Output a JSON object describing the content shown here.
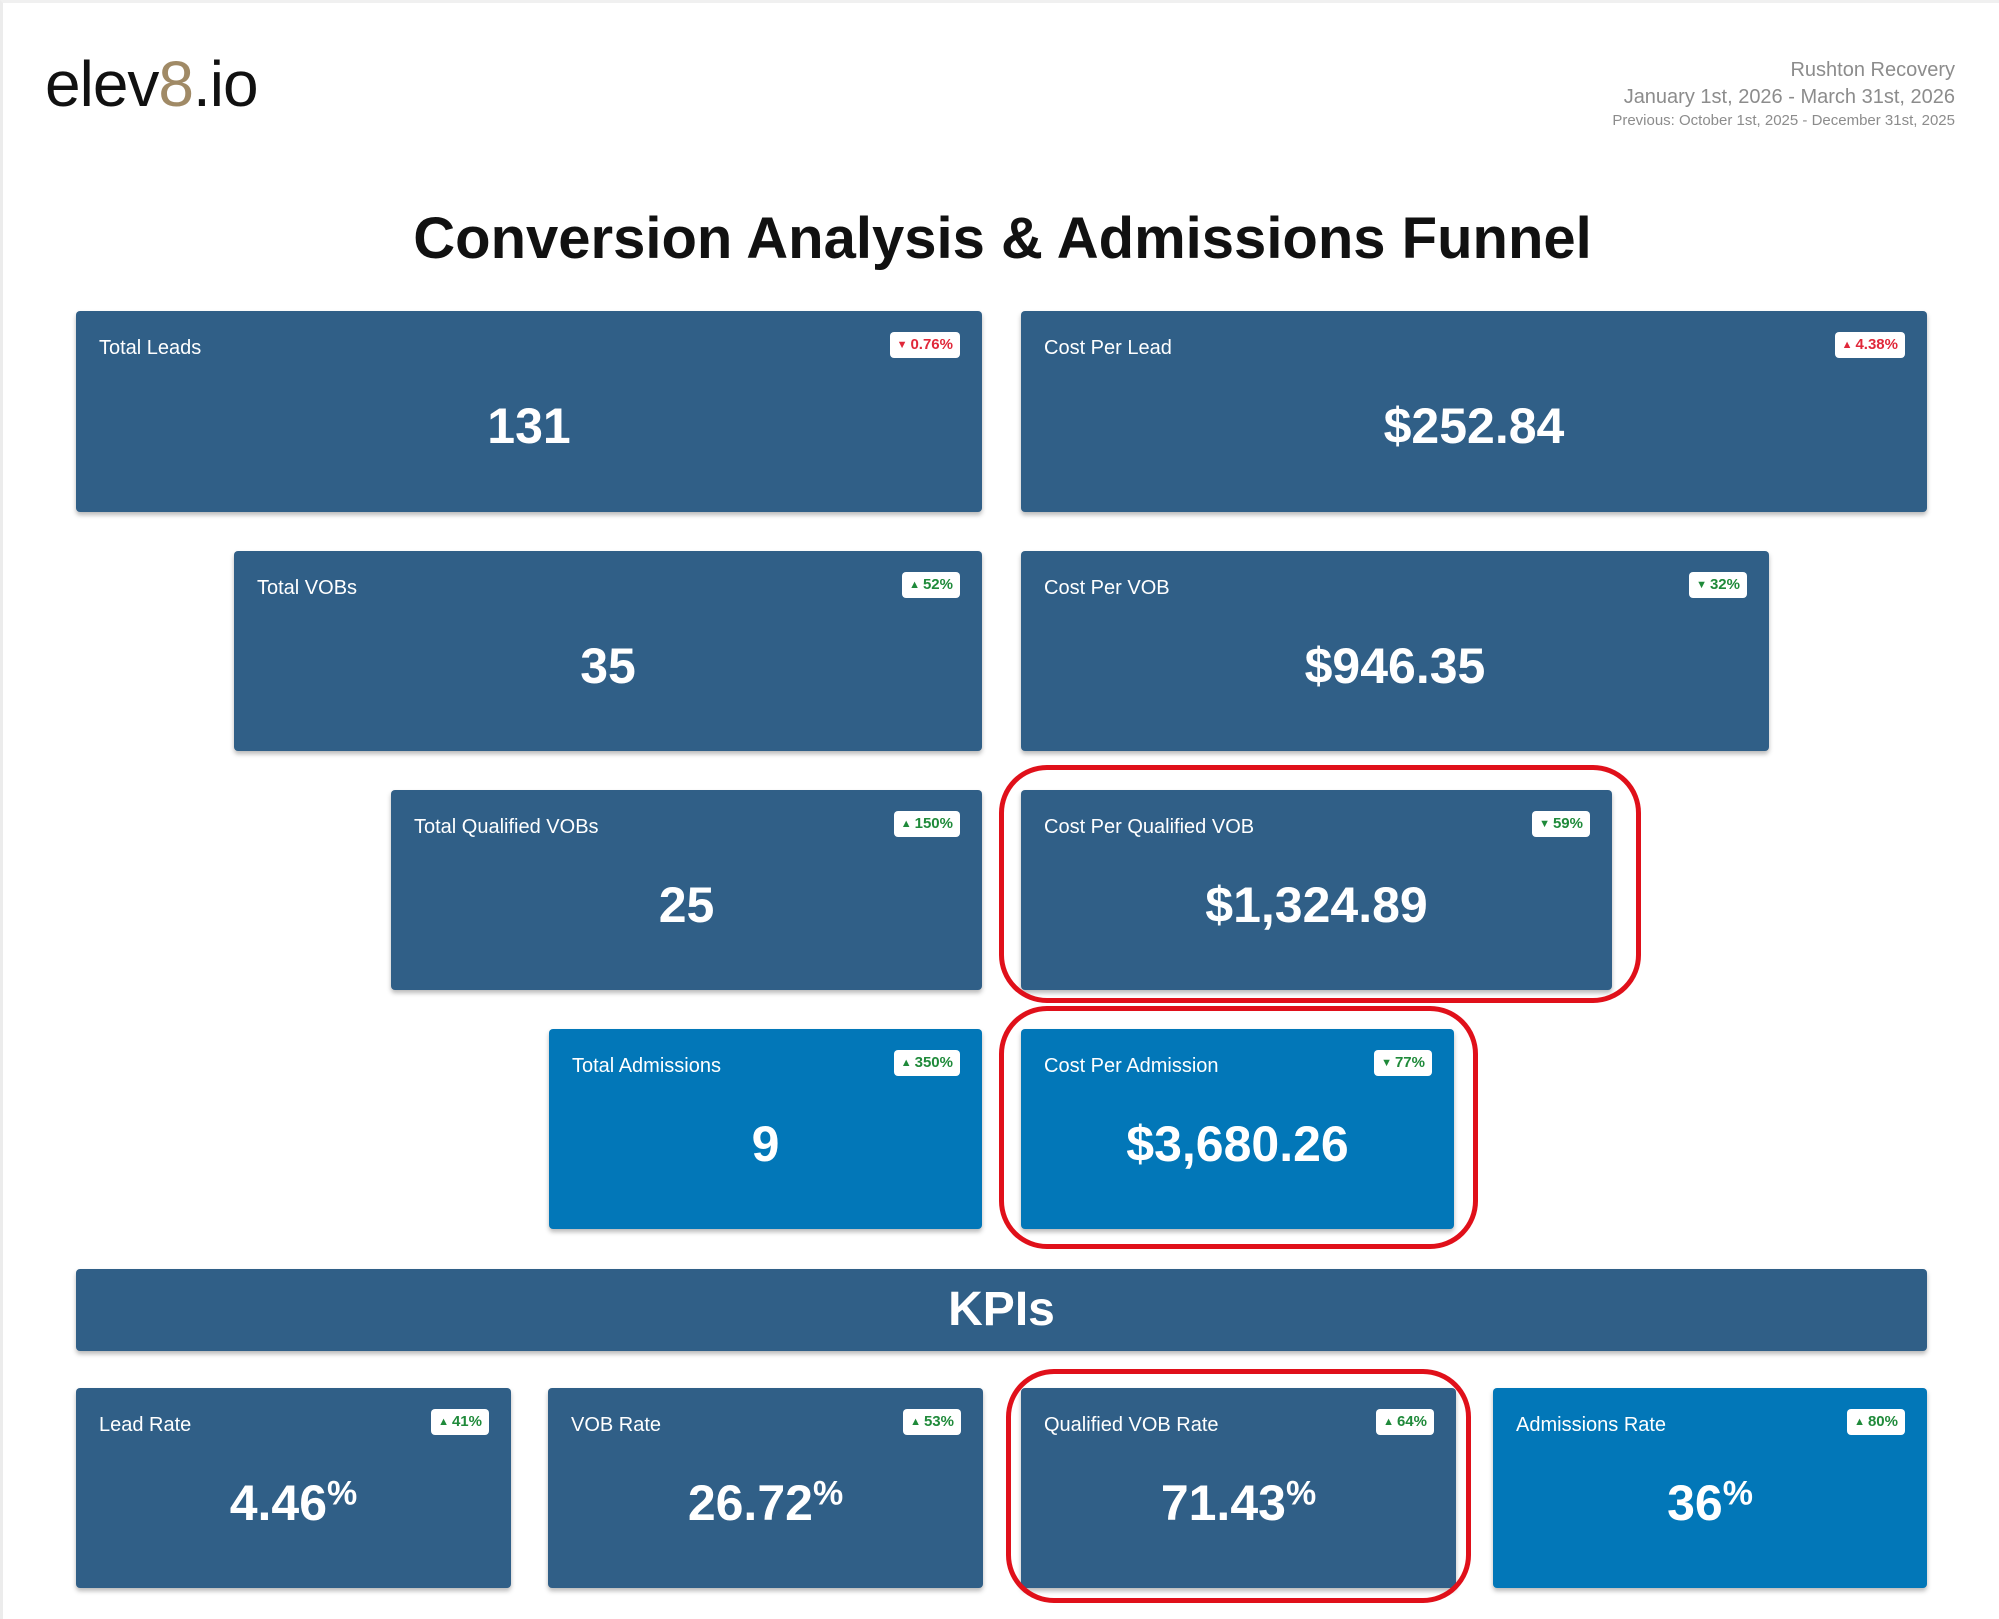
{
  "header": {
    "logo_prefix": "elev",
    "logo_eight": "8",
    "logo_suffix": ".io",
    "client": "Rushton Recovery",
    "date_range": "January 1st, 2026 - March 31st, 2026",
    "previous_range": "Previous: October 1st, 2025 - December 31st, 2025"
  },
  "title": "Conversion Analysis & Admissions Funnel",
  "funnel": {
    "total_leads": {
      "label": "Total Leads",
      "value": "131",
      "change": "0.76%",
      "direction": "down",
      "sentiment": "bad"
    },
    "cost_per_lead": {
      "label": "Cost Per Lead",
      "value": "$252.84",
      "change": "4.38%",
      "direction": "up",
      "sentiment": "bad"
    },
    "total_vobs": {
      "label": "Total VOBs",
      "value": "35",
      "change": "52%",
      "direction": "up",
      "sentiment": "good"
    },
    "cost_per_vob": {
      "label": "Cost Per VOB",
      "value": "$946.35",
      "change": "32%",
      "direction": "down",
      "sentiment": "good"
    },
    "total_qualified_vobs": {
      "label": "Total Qualified VOBs",
      "value": "25",
      "change": "150%",
      "direction": "up",
      "sentiment": "good"
    },
    "cost_per_qualified_vob": {
      "label": "Cost Per Qualified VOB",
      "value": "$1,324.89",
      "change": "59%",
      "direction": "down",
      "sentiment": "good"
    },
    "total_admissions": {
      "label": "Total Admissions",
      "value": "9",
      "change": "350%",
      "direction": "up",
      "sentiment": "good"
    },
    "cost_per_admission": {
      "label": "Cost Per Admission",
      "value": "$3,680.26",
      "change": "77%",
      "direction": "down",
      "sentiment": "good"
    }
  },
  "kpi_section_title": "KPIs",
  "kpis": {
    "lead_rate": {
      "label": "Lead Rate",
      "value": "4.46",
      "unit": "%",
      "change": "41%",
      "direction": "up",
      "sentiment": "good"
    },
    "vob_rate": {
      "label": "VOB Rate",
      "value": "26.72",
      "unit": "%",
      "change": "53%",
      "direction": "up",
      "sentiment": "good"
    },
    "qualified_vob_rate": {
      "label": "Qualified VOB Rate",
      "value": "71.43",
      "unit": "%",
      "change": "64%",
      "direction": "up",
      "sentiment": "good"
    },
    "admissions_rate": {
      "label": "Admissions Rate",
      "value": "36",
      "unit": "%",
      "change": "80%",
      "direction": "up",
      "sentiment": "good"
    }
  },
  "arrows": {
    "up": "▲",
    "down": "▼"
  },
  "colors": {
    "card_dark": "#305f87",
    "card_light": "#0277b8",
    "good": "#1f8a3a",
    "bad": "#e0283a",
    "highlight": "#e0101a",
    "logo_accent": "#a08a66"
  }
}
